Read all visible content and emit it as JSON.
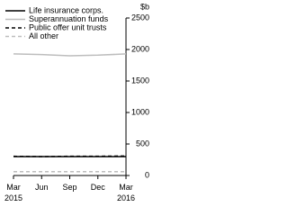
{
  "chart_data": {
    "type": "line",
    "y_unit": "$b",
    "categories": [
      "Mar 2015",
      "Jun",
      "Sep",
      "Dec",
      "Mar 2016"
    ],
    "series": [
      {
        "name": "Life insurance corps.",
        "color": "#000000",
        "dash": false,
        "values": [
          300,
          300,
          300,
          300,
          300
        ]
      },
      {
        "name": "Superannuation funds",
        "color": "#bdbdbd",
        "dash": false,
        "values": [
          1930,
          1920,
          1900,
          1910,
          1930
        ]
      },
      {
        "name": "Public offer unit trusts",
        "color": "#000000",
        "dash": true,
        "values": [
          305,
          300,
          305,
          305,
          310
        ]
      },
      {
        "name": "All other",
        "color": "#bdbdbd",
        "dash": true,
        "values": [
          60,
          60,
          60,
          60,
          60
        ]
      }
    ],
    "ylim": [
      0,
      2500
    ],
    "yticks": [
      0,
      500,
      1000,
      1500,
      2000,
      2500
    ],
    "grid": false
  }
}
